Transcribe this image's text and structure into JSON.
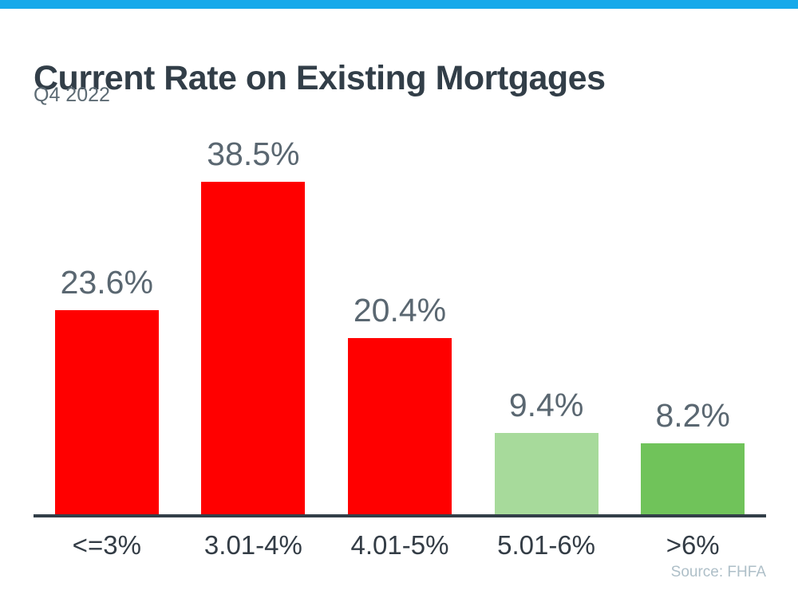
{
  "page": {
    "background": "#ffffff",
    "accent_bar_color": "#17a9ea"
  },
  "header": {
    "title": "Current Rate on Existing Mortgages",
    "subtitle": "Q4 2022"
  },
  "chart_data": {
    "type": "bar",
    "title": "Current Rate on Existing Mortgages",
    "subtitle": "Q4 2022",
    "categories": [
      "<=3%",
      "3.01-4%",
      "4.01-5%",
      "5.01-6%",
      ">6%"
    ],
    "values": [
      23.6,
      38.5,
      20.4,
      9.4,
      8.2
    ],
    "value_labels": [
      "23.6%",
      "38.5%",
      "20.4%",
      "9.4%",
      "8.2%"
    ],
    "bar_colors": [
      "#ff0000",
      "#ff0000",
      "#ff0000",
      "#a7da9b",
      "#70c35a"
    ],
    "xlabel": "",
    "ylabel": "",
    "ylim": [
      0,
      43.5
    ],
    "grid": false,
    "legend": false,
    "axis_color": "#323e48",
    "value_label_color": "#5a6771",
    "tick_label_color": "#333c45"
  },
  "footer": {
    "source": "Source: FHFA",
    "source_color": "#aebfc8"
  }
}
